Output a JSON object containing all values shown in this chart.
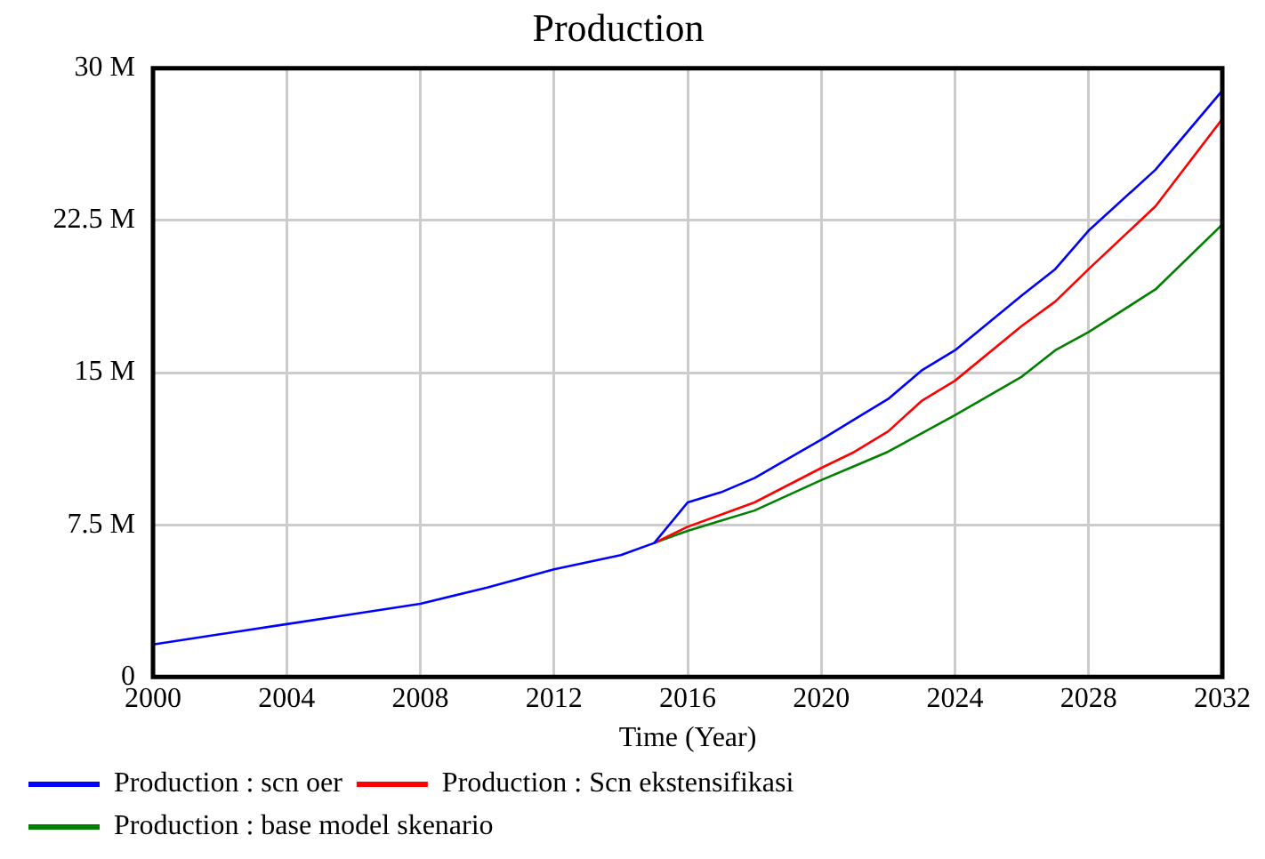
{
  "chart_data": {
    "type": "line",
    "title": "Production",
    "xlabel": "Time (Year)",
    "x": [
      2000,
      2002,
      2004,
      2006,
      2008,
      2010,
      2012,
      2014,
      2015,
      2016,
      2017,
      2018,
      2020,
      2021,
      2022,
      2023,
      2024,
      2026,
      2027,
      2028,
      2030,
      2032
    ],
    "series": [
      {
        "name": "Production : scn oer",
        "color": "#0000ff",
        "values": [
          1600000,
          2100000,
          2600000,
          3100000,
          3600000,
          4400000,
          5300000,
          6000000,
          6600000,
          8600000,
          9100000,
          9800000,
          11700000,
          12700000,
          13700000,
          15100000,
          16100000,
          18800000,
          20100000,
          22000000,
          25000000,
          28900000
        ]
      },
      {
        "name": "Production : Scn ekstensifikasi",
        "color": "#ff0000",
        "values": [
          null,
          null,
          null,
          null,
          null,
          null,
          null,
          null,
          6600000,
          7400000,
          8000000,
          8600000,
          10300000,
          11100000,
          12100000,
          13600000,
          14600000,
          17300000,
          18500000,
          20100000,
          23200000,
          27500000
        ]
      },
      {
        "name": "Production : base model skenario",
        "color": "#008000",
        "values": [
          null,
          null,
          null,
          null,
          null,
          null,
          null,
          null,
          6600000,
          7200000,
          7700000,
          8200000,
          9700000,
          10400000,
          11100000,
          12000000,
          12900000,
          14800000,
          16100000,
          17000000,
          19100000,
          22300000
        ]
      }
    ],
    "xlim": [
      2000,
      2032
    ],
    "xticks": [
      2000,
      2004,
      2008,
      2012,
      2016,
      2020,
      2024,
      2028,
      2032
    ],
    "ylim": [
      0,
      30000000
    ],
    "yticks": [
      {
        "value": 0,
        "label": "0"
      },
      {
        "value": 7500000,
        "label": "7.5 M"
      },
      {
        "value": 15000000,
        "label": "15 M"
      },
      {
        "value": 22500000,
        "label": "22.5 M"
      },
      {
        "value": 30000000,
        "label": "30 M"
      }
    ],
    "grid": true,
    "legend": "bottom",
    "marker": "none",
    "line_style": "solid"
  }
}
